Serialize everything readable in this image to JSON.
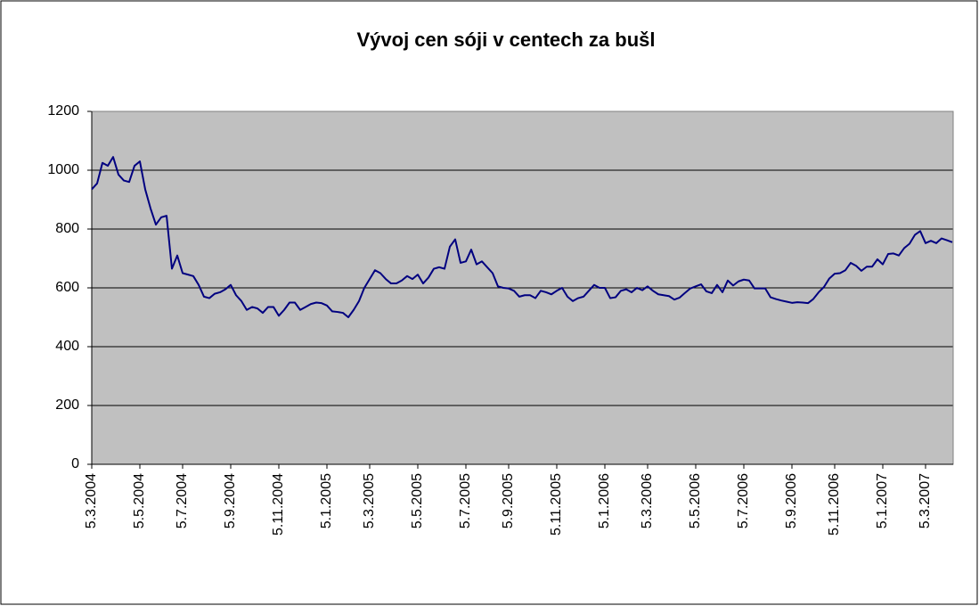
{
  "chart_data": {
    "type": "line",
    "title": "Vývoj cen sóji v centech za bušl",
    "categories": [
      "5.3.2004",
      null,
      null,
      null,
      null,
      null,
      null,
      null,
      null,
      "5.5.2004",
      null,
      null,
      null,
      null,
      null,
      null,
      null,
      "5.7.2004",
      null,
      null,
      null,
      null,
      null,
      null,
      null,
      null,
      "5.9.2004",
      null,
      null,
      null,
      null,
      null,
      null,
      null,
      null,
      "5.11.2004",
      null,
      null,
      null,
      null,
      null,
      null,
      null,
      null,
      "5.1.2005",
      null,
      null,
      null,
      null,
      null,
      null,
      null,
      "5.3.2005",
      null,
      null,
      null,
      null,
      null,
      null,
      null,
      null,
      "5.5.2005",
      null,
      null,
      null,
      null,
      null,
      null,
      null,
      null,
      "5.7.2005",
      null,
      null,
      null,
      null,
      null,
      null,
      null,
      "5.9.2005",
      null,
      null,
      null,
      null,
      null,
      null,
      null,
      null,
      "5.11.2005",
      null,
      null,
      null,
      null,
      null,
      null,
      null,
      null,
      "5.1.2006",
      null,
      null,
      null,
      null,
      null,
      null,
      null,
      "5.3.2006",
      null,
      null,
      null,
      null,
      null,
      null,
      null,
      null,
      "5.5.2006",
      null,
      null,
      null,
      null,
      null,
      null,
      null,
      null,
      "5.7.2006",
      null,
      null,
      null,
      null,
      null,
      null,
      null,
      null,
      "5.9.2006",
      null,
      null,
      null,
      null,
      null,
      null,
      null,
      "5.11.2006",
      null,
      null,
      null,
      null,
      null,
      null,
      null,
      null,
      "5.1.2007",
      null,
      null,
      null,
      null,
      null,
      null,
      null,
      "5.3.2007",
      null,
      null,
      null,
      null,
      null
    ],
    "values": [
      935,
      955,
      1025,
      1015,
      1045,
      985,
      965,
      960,
      1015,
      1030,
      935,
      870,
      815,
      840,
      845,
      665,
      710,
      650,
      645,
      640,
      610,
      570,
      565,
      580,
      585,
      595,
      610,
      575,
      555,
      525,
      535,
      530,
      515,
      535,
      535,
      505,
      525,
      550,
      550,
      525,
      535,
      545,
      550,
      548,
      540,
      520,
      518,
      515,
      500,
      525,
      555,
      600,
      630,
      660,
      650,
      630,
      615,
      615,
      625,
      640,
      630,
      645,
      615,
      635,
      665,
      670,
      665,
      740,
      765,
      685,
      690,
      730,
      680,
      690,
      670,
      650,
      605,
      600,
      598,
      590,
      570,
      575,
      575,
      565,
      590,
      585,
      578,
      590,
      600,
      570,
      555,
      565,
      570,
      590,
      610,
      600,
      600,
      565,
      568,
      590,
      595,
      585,
      600,
      592,
      605,
      590,
      578,
      575,
      572,
      560,
      567,
      583,
      598,
      605,
      612,
      588,
      582,
      610,
      585,
      625,
      608,
      622,
      628,
      625,
      598,
      598,
      598,
      568,
      562,
      557,
      553,
      549,
      551,
      550,
      548,
      562,
      585,
      603,
      632,
      648,
      650,
      660,
      685,
      675,
      658,
      672,
      672,
      697,
      680,
      715,
      717,
      710,
      735,
      750,
      780,
      793,
      752,
      760,
      752,
      768,
      762,
      755
    ],
    "color": "#000080",
    "plot_background": "#c0c0c0",
    "ylim": [
      0,
      1200
    ],
    "yticks": [
      0,
      200,
      400,
      600,
      800,
      1000,
      1200
    ],
    "grid": true
  }
}
